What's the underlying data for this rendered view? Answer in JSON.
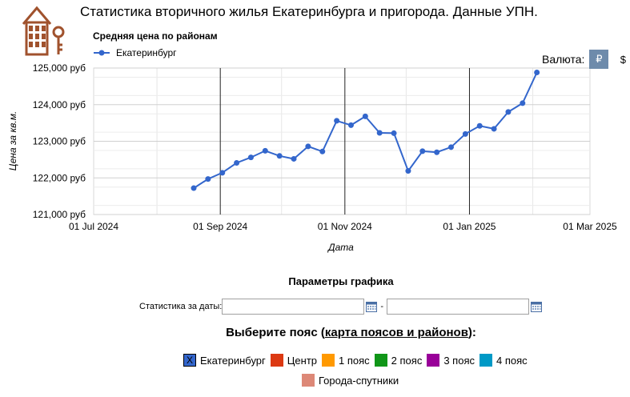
{
  "header": {
    "title": "Статистика вторичного жилья Екатеринбурга и пригорода. Данные УПН."
  },
  "logo": {
    "icon": "house-key-logo-icon",
    "color": "#a0522d"
  },
  "currency": {
    "label": "Валюта:",
    "options": [
      "₽",
      "$"
    ],
    "selected": "₽",
    "active_color": "#6e8bab"
  },
  "chart_data": {
    "type": "line",
    "title": "Средняя цена по районам",
    "xlabel": "Дата",
    "ylabel": "Цена за кв.м.",
    "x_ticks": [
      "01 Jul 2024",
      "01 Sep 2024",
      "01 Nov 2024",
      "01 Jan 2025",
      "01 Mar 2025"
    ],
    "xlim": [
      "2024-07-01",
      "2025-03-01"
    ],
    "y_ticks": [
      "121,000 руб",
      "122,000 руб",
      "123,000 руб",
      "124,000 руб",
      "125,000 руб"
    ],
    "ylim": [
      121000,
      125000
    ],
    "grid": true,
    "legend": "top-left",
    "series": [
      {
        "name": "Екатеринбург",
        "color": "#3366cc",
        "x": [
          "2024-08-19",
          "2024-08-26",
          "2024-09-02",
          "2024-09-09",
          "2024-09-16",
          "2024-09-23",
          "2024-09-30",
          "2024-10-07",
          "2024-10-14",
          "2024-10-21",
          "2024-10-28",
          "2024-11-04",
          "2024-11-11",
          "2024-11-18",
          "2024-11-25",
          "2024-12-02",
          "2024-12-09",
          "2024-12-16",
          "2024-12-23",
          "2024-12-30",
          "2025-01-06",
          "2025-01-13",
          "2025-01-20",
          "2025-01-27",
          "2025-02-03"
        ],
        "y": [
          121720,
          121970,
          122140,
          122410,
          122560,
          122740,
          122600,
          122520,
          122860,
          122720,
          123560,
          123440,
          123680,
          123230,
          123220,
          122190,
          122730,
          122700,
          122840,
          123200,
          123420,
          123340,
          123800,
          124040,
          124880
        ]
      }
    ]
  },
  "params": {
    "title": "Параметры графика",
    "date_label": "Статистика за даты:",
    "date_from": {
      "value": "",
      "placeholder": ""
    },
    "date_to": {
      "value": "",
      "placeholder": ""
    },
    "separator": "-",
    "calendar_icon": "calendar-icon"
  },
  "zones": {
    "prefix": "Выберите пояс (",
    "link": "карта поясов и районов",
    "suffix": "):",
    "items": [
      {
        "label": "Екатеринбург",
        "color": "#3366cc",
        "checked": true,
        "mark": "X"
      },
      {
        "label": "Центр",
        "color": "#dc3912",
        "checked": false,
        "mark": ""
      },
      {
        "label": "1 пояс",
        "color": "#ff9900",
        "checked": false,
        "mark": ""
      },
      {
        "label": "2 пояс",
        "color": "#109618",
        "checked": false,
        "mark": ""
      },
      {
        "label": "3 пояс",
        "color": "#990099",
        "checked": false,
        "mark": ""
      },
      {
        "label": "4 пояс",
        "color": "#0099c6",
        "checked": false,
        "mark": ""
      },
      {
        "label": "Города-спутники",
        "color": "#dd8877",
        "checked": false,
        "mark": ""
      }
    ]
  }
}
